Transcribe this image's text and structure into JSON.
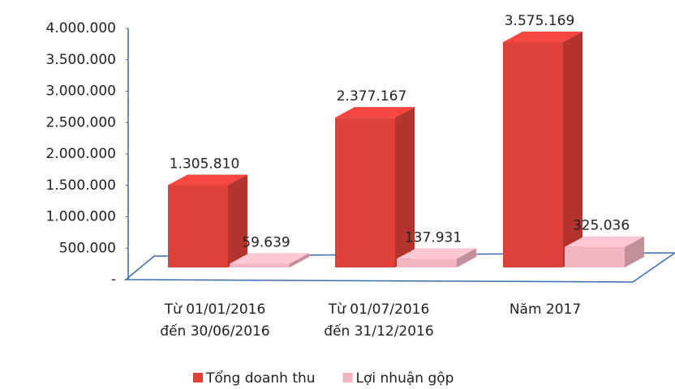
{
  "chart_data": {
    "type": "bar3d",
    "categories": [
      [
        "Từ 01/01/2016",
        "đến 30/06/2016"
      ],
      [
        "Từ 01/07/2016",
        "đến 31/12/2016"
      ],
      [
        "Năm 2017"
      ]
    ],
    "series": [
      {
        "name": "Tổng doanh thu",
        "color": "#e0403a",
        "values": [
          1305810,
          2377167,
          3575169
        ],
        "value_labels": [
          "1.305.810",
          "2.377.167",
          "3.575.169"
        ]
      },
      {
        "name": "Lợi nhuận gộp",
        "color": "#f2b4c1",
        "values": [
          59639,
          137931,
          325036
        ],
        "value_labels": [
          "59.639",
          "137.931",
          "325.036"
        ]
      }
    ],
    "ylim": [
      0,
      4000000
    ],
    "yticks": [
      {
        "value": 0,
        "label": "-"
      },
      {
        "value": 500000,
        "label": "500.000"
      },
      {
        "value": 1000000,
        "label": "1.000.000"
      },
      {
        "value": 1500000,
        "label": "1.500.000"
      },
      {
        "value": 2000000,
        "label": "2.000.000"
      },
      {
        "value": 2500000,
        "label": "2.500.000"
      },
      {
        "value": 3000000,
        "label": "3.000.000"
      },
      {
        "value": 3500000,
        "label": "3.500.000"
      },
      {
        "value": 4000000,
        "label": "4.000.000"
      }
    ],
    "legend": "bottom"
  }
}
